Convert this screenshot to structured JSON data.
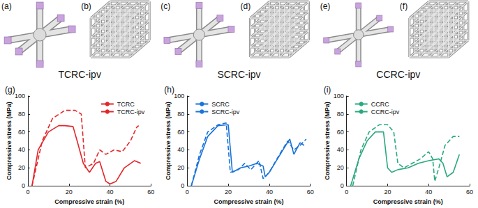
{
  "panels": [
    {
      "label": "(a)",
      "kind": "unit"
    },
    {
      "label": "(b)",
      "kind": "lattice"
    },
    {
      "label": "(c)",
      "kind": "unit"
    },
    {
      "label": "(d)",
      "kind": "lattice"
    },
    {
      "label": "(e)",
      "kind": "unit"
    },
    {
      "label": "(f)",
      "kind": "lattice"
    }
  ],
  "captions": [
    "TCRC-ipv",
    "SCRC-ipv",
    "CCRC-ipv"
  ],
  "chart_data": [
    {
      "type": "line",
      "title": "(g)",
      "x_label": "Compressive strain (%)",
      "y_label": "Compressive stress (MPa)",
      "xlim": [
        0,
        60
      ],
      "xticks": [
        0,
        20,
        40,
        60
      ],
      "ylim": [
        0,
        100
      ],
      "yticks": [
        0,
        20,
        40,
        60,
        80,
        100
      ],
      "legend": "upper right",
      "series": [
        {
          "name": "TCRC",
          "color": "#e3262a",
          "line_style": "solid",
          "x": [
            2,
            5,
            10,
            15,
            18,
            22,
            24,
            27,
            30,
            33,
            35,
            38,
            40,
            43,
            47,
            52,
            55
          ],
          "values": [
            0,
            40,
            60,
            67,
            67,
            66,
            50,
            25,
            15,
            25,
            27,
            5,
            2,
            5,
            20,
            28,
            25
          ]
        },
        {
          "name": "TCRC-ipv",
          "color": "#e3262a",
          "line_style": "dashed",
          "x": [
            2,
            7,
            12,
            18,
            23,
            26,
            28,
            32,
            35,
            38,
            42,
            46,
            50,
            53,
            54
          ],
          "values": [
            0,
            50,
            75,
            84,
            84,
            80,
            20,
            25,
            40,
            35,
            40,
            38,
            50,
            65,
            67
          ]
        }
      ]
    },
    {
      "type": "line",
      "title": "(h)",
      "x_label": "Compressive strain (%)",
      "y_label": "Compressive stress (MPa)",
      "xlim": [
        0,
        60
      ],
      "xticks": [
        0,
        20,
        40,
        60
      ],
      "ylim": [
        0,
        100
      ],
      "yticks": [
        0,
        20,
        40,
        60,
        80,
        100
      ],
      "legend": "upper left",
      "series": [
        {
          "name": "SCRC",
          "color": "#1a73d9",
          "line_style": "solid",
          "x": [
            2,
            6,
            10,
            15,
            20,
            22,
            26,
            30,
            34,
            37,
            38,
            40,
            44,
            48,
            50,
            52,
            55,
            57
          ],
          "values": [
            0,
            30,
            55,
            67,
            68,
            15,
            20,
            22,
            25,
            22,
            10,
            15,
            30,
            45,
            52,
            35,
            48,
            45
          ]
        },
        {
          "name": "SCRC-ipv",
          "color": "#1a73d9",
          "line_style": "dashed",
          "x": [
            2,
            6,
            10,
            15,
            19,
            21,
            25,
            28,
            31,
            35,
            37,
            40,
            45,
            49,
            52,
            55,
            58
          ],
          "values": [
            0,
            35,
            60,
            68,
            70,
            15,
            18,
            25,
            18,
            28,
            8,
            15,
            35,
            50,
            40,
            45,
            52
          ]
        }
      ]
    },
    {
      "type": "line",
      "title": "(i)",
      "x_label": "Compressive strain (%)",
      "y_label": "Compressive stress (MPa)",
      "xlim": [
        0,
        60
      ],
      "xticks": [
        0,
        20,
        40,
        60
      ],
      "ylim": [
        0,
        100
      ],
      "yticks": [
        0,
        20,
        40,
        60,
        80,
        100
      ],
      "legend": "upper left",
      "series": [
        {
          "name": "CCRC",
          "color": "#2aa87e",
          "line_style": "solid",
          "x": [
            2,
            6,
            10,
            14,
            18,
            20,
            22,
            25,
            30,
            35,
            40,
            45,
            47,
            49,
            52,
            55
          ],
          "values": [
            0,
            30,
            50,
            60,
            60,
            20,
            15,
            18,
            20,
            25,
            28,
            30,
            25,
            10,
            15,
            35
          ]
        },
        {
          "name": "CCRC-ipv",
          "color": "#2aa87e",
          "line_style": "dashed",
          "x": [
            3,
            7,
            11,
            16,
            20,
            23,
            25,
            28,
            32,
            36,
            40,
            42,
            43,
            45,
            48,
            52,
            55
          ],
          "values": [
            0,
            40,
            60,
            68,
            68,
            60,
            25,
            20,
            25,
            30,
            38,
            30,
            5,
            20,
            45,
            55,
            55
          ]
        }
      ]
    }
  ]
}
